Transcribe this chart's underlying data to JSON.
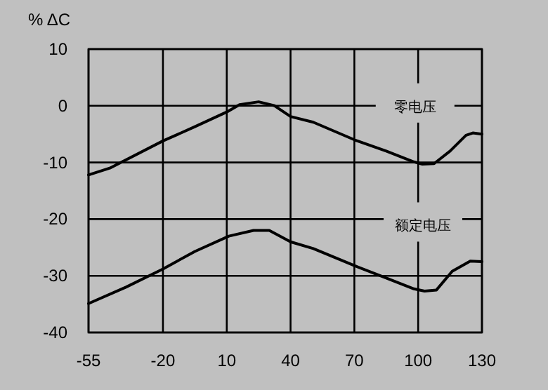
{
  "chart_data": {
    "type": "line",
    "ylabel": "% ΔC",
    "xlim": [
      -55,
      130
    ],
    "ylim": [
      -40,
      10
    ],
    "xticks": [
      -55,
      -20,
      10,
      40,
      70,
      100,
      130
    ],
    "yticks": [
      -40,
      -30,
      -20,
      -10,
      0,
      10
    ],
    "grid": true,
    "marker": "none",
    "line_style": "solid",
    "series": [
      {
        "name": "零电压",
        "color": "#000000",
        "x": [
          -55,
          -45,
          -20,
          -5,
          10,
          16,
          25,
          32.5,
          40,
          50.7,
          70,
          85,
          98,
          102,
          107.5,
          115,
          122.5,
          125.7,
          130
        ],
        "values": [
          -12.2,
          -11.0,
          -6.2,
          -3.7,
          -1.1,
          0.2,
          0.7,
          0,
          -1.9,
          -2.9,
          -6.0,
          -8.0,
          -9.9,
          -10.3,
          -10.2,
          -8.0,
          -5.2,
          -4.8,
          -5.0
        ]
      },
      {
        "name": "额定电压",
        "color": "#000000",
        "x": [
          -55,
          -37.4,
          -20,
          -5,
          11,
          22.6,
          30,
          40,
          50.7,
          70,
          85,
          98,
          103,
          108.6,
          116,
          124.5,
          130
        ],
        "values": [
          -34.9,
          -32.0,
          -28.8,
          -25.7,
          -23.0,
          -22.0,
          -22.0,
          -24.0,
          -25.2,
          -28.2,
          -30.4,
          -32.3,
          -32.7,
          -32.5,
          -29.2,
          -27.4,
          -27.5
        ]
      }
    ]
  }
}
